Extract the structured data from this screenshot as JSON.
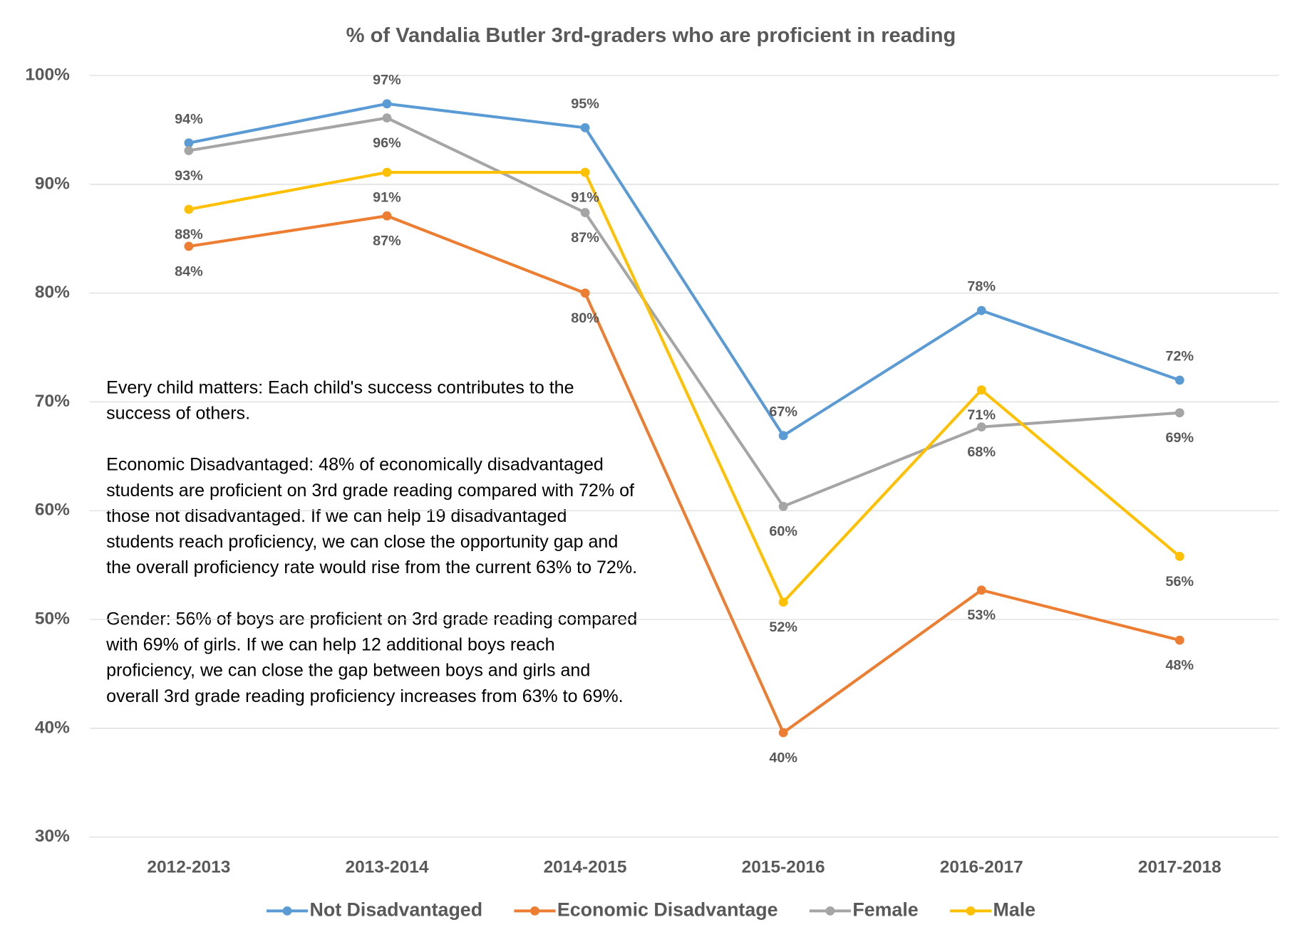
{
  "chart_data": {
    "type": "line",
    "title": "% of Vandalia Butler 3rd-graders who are proficient in reading",
    "categories": [
      "2012-2013",
      "2013-2014",
      "2014-2015",
      "2015-2016",
      "2016-2017",
      "2017-2018"
    ],
    "series": [
      {
        "name": "Not Disadvantaged",
        "color": "#5b9bd5",
        "values": [
          93.8,
          97.4,
          95.2,
          66.9,
          78.4,
          72.0
        ],
        "value_labels": [
          "94%",
          "97%",
          "95%",
          "67%",
          "78%",
          "72%"
        ]
      },
      {
        "name": "Economic Disadvantage",
        "color": "#ed7d31",
        "values": [
          84.3,
          87.1,
          80.0,
          39.6,
          52.7,
          48.1
        ],
        "value_labels": [
          "84%",
          "87%",
          "80%",
          "40%",
          "53%",
          "48%"
        ]
      },
      {
        "name": "Female",
        "color": "#a5a5a5",
        "values": [
          93.1,
          96.1,
          87.4,
          60.4,
          67.7,
          69.0
        ],
        "value_labels": [
          "93%",
          "96%",
          "87%",
          "60%",
          "68%",
          "69%"
        ]
      },
      {
        "name": "Male",
        "color": "#ffc000",
        "values": [
          87.7,
          91.1,
          91.1,
          51.6,
          71.1,
          55.8
        ],
        "value_labels": [
          "88%",
          "91%",
          "91%",
          "52%",
          "71%",
          "56%"
        ]
      }
    ],
    "ylim": [
      30,
      100
    ],
    "yticks": [
      {
        "value": 30,
        "label": "30%"
      },
      {
        "value": 40,
        "label": "40%"
      },
      {
        "value": 50,
        "label": "50%"
      },
      {
        "value": 60,
        "label": "60%"
      },
      {
        "value": 70,
        "label": "70%"
      },
      {
        "value": 80,
        "label": "80%"
      },
      {
        "value": 90,
        "label": "90%"
      },
      {
        "value": 100,
        "label": "100%"
      }
    ],
    "grid": true,
    "legend": "bottom",
    "annotations": [
      "Every child matters: Each child's success contributes to the success of others.",
      "Economic Disadvantaged: 48% of economically disadvantaged students are proficient on 3rd grade reading compared with 72% of those not disadvantaged. If we can help 19 disadvantaged students reach proficiency, we can close the opportunity gap and the overall proficiency rate would rise from the current 63% to 72%.",
      "Gender: 56% of boys are proficient on 3rd grade reading compared with 69% of girls. If we can help 12 additional boys reach proficiency, we can close the gap between boys and girls and overall 3rd grade reading proficiency increases from 63% to 69%."
    ]
  }
}
